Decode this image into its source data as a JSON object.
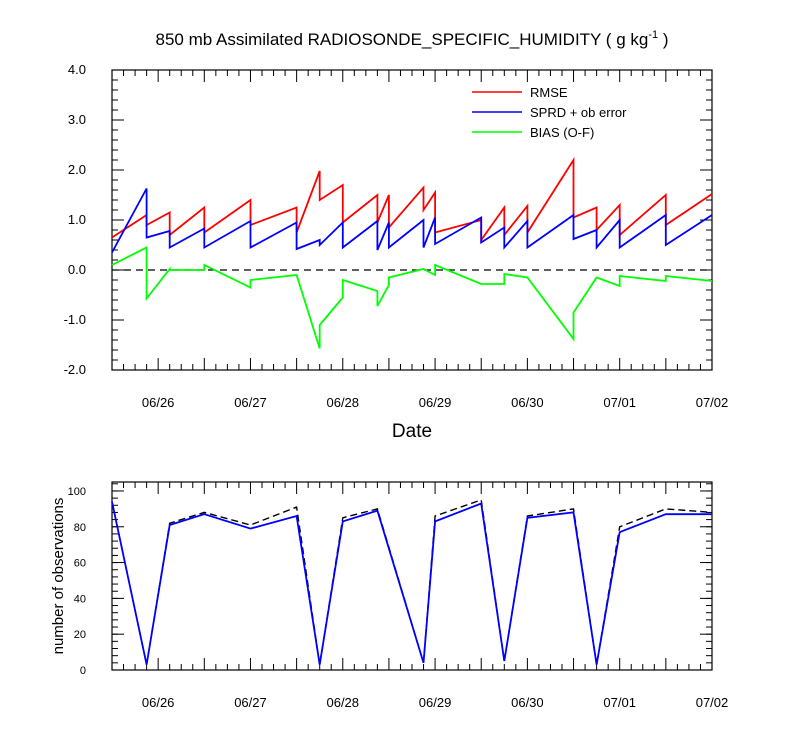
{
  "chart_data": [
    {
      "type": "line",
      "title": "850 mb Assimilated RADIOSONDE_SPECIFIC_HUMIDITY ( g kg",
      "title_sup": "-1",
      "title_end": " )",
      "xlabel": "Date",
      "ylabel": "",
      "x_tick_labels": [
        "06/26",
        "06/27",
        "06/28",
        "06/29",
        "06/30",
        "07/01",
        "07/02"
      ],
      "y_tick_labels": [
        "4.0",
        "3.0",
        "2.0",
        "1.0",
        "0.0",
        "-1.0",
        "-2.0"
      ],
      "ylim": [
        -2,
        4
      ],
      "zero_line": "dashed",
      "legend_position": "top-right",
      "series": [
        {
          "name": "RMSE",
          "color": "#ff0000",
          "x": [
            "06/25 12Z",
            "06/25 21Z",
            "06/25 21Z",
            "06/26 03Z",
            "06/26 03Z",
            "06/26 12Z",
            "06/26 12Z",
            "06/27 00Z",
            "06/27 00Z",
            "06/27 12Z",
            "06/27 12Z",
            "06/27 18Z",
            "06/27 18Z",
            "06/28 00Z",
            "06/28 00Z",
            "06/28 09Z",
            "06/28 09Z",
            "06/28 12Z",
            "06/28 12Z",
            "06/28 21Z",
            "06/28 21Z",
            "06/29 00Z",
            "06/29 00Z",
            "06/29 12Z",
            "06/29 12Z",
            "06/29 18Z",
            "06/29 18Z",
            "06/30 00Z",
            "06/30 00Z",
            "06/30 12Z",
            "06/30 12Z",
            "06/30 18Z",
            "06/30 18Z",
            "07/01 00Z",
            "07/01 00Z",
            "07/01 12Z",
            "07/01 12Z",
            "07/02 00Z"
          ],
          "values": [
            0.65,
            1.1,
            0.9,
            1.15,
            0.7,
            1.25,
            0.75,
            1.4,
            0.9,
            1.25,
            0.75,
            1.98,
            1.4,
            1.7,
            0.95,
            1.5,
            0.95,
            1.5,
            0.85,
            1.65,
            1.2,
            1.55,
            0.75,
            1.0,
            0.6,
            1.25,
            0.7,
            1.28,
            0.75,
            2.2,
            1.05,
            1.25,
            0.8,
            1.3,
            0.7,
            1.5,
            0.9,
            1.52
          ]
        },
        {
          "name": "SPRD + ob error",
          "color": "#0000ff",
          "x": [
            "06/25 12Z",
            "06/25 21Z",
            "06/25 21Z",
            "06/26 03Z",
            "06/26 03Z",
            "06/26 12Z",
            "06/26 12Z",
            "06/27 00Z",
            "06/27 00Z",
            "06/27 12Z",
            "06/27 12Z",
            "06/27 18Z",
            "06/27 18Z",
            "06/28 00Z",
            "06/28 00Z",
            "06/28 09Z",
            "06/28 09Z",
            "06/28 12Z",
            "06/28 12Z",
            "06/28 21Z",
            "06/28 21Z",
            "06/29 00Z",
            "06/29 00Z",
            "06/29 12Z",
            "06/29 12Z",
            "06/29 18Z",
            "06/29 18Z",
            "06/30 00Z",
            "06/30 00Z",
            "06/30 12Z",
            "06/30 12Z",
            "06/30 18Z",
            "06/30 18Z",
            "07/01 00Z",
            "07/01 00Z",
            "07/01 12Z",
            "07/01 12Z",
            "07/02 00Z"
          ],
          "values": [
            0.35,
            1.63,
            0.65,
            0.78,
            0.45,
            0.83,
            0.45,
            0.98,
            0.45,
            0.95,
            0.42,
            0.6,
            0.5,
            0.95,
            0.45,
            0.98,
            0.4,
            0.95,
            0.45,
            1.0,
            0.45,
            1.05,
            0.52,
            1.05,
            0.55,
            0.85,
            0.45,
            0.98,
            0.45,
            1.1,
            0.62,
            0.8,
            0.45,
            1.0,
            0.45,
            1.1,
            0.5,
            1.1
          ]
        },
        {
          "name": "BIAS (O-F)",
          "color": "#00ff00",
          "x": [
            "06/25 12Z",
            "06/25 21Z",
            "06/25 21Z",
            "06/26 03Z",
            "06/26 03Z",
            "06/26 12Z",
            "06/26 12Z",
            "06/27 00Z",
            "06/27 00Z",
            "06/27 12Z",
            "06/27 12Z",
            "06/27 18Z",
            "06/27 18Z",
            "06/28 00Z",
            "06/28 00Z",
            "06/28 09Z",
            "06/28 09Z",
            "06/28 12Z",
            "06/28 12Z",
            "06/28 21Z",
            "06/28 21Z",
            "06/29 00Z",
            "06/29 00Z",
            "06/29 12Z",
            "06/29 12Z",
            "06/29 18Z",
            "06/29 18Z",
            "06/30 00Z",
            "06/30 00Z",
            "06/30 12Z",
            "06/30 12Z",
            "06/30 18Z",
            "06/30 18Z",
            "07/01 00Z",
            "07/01 00Z",
            "07/01 12Z",
            "07/01 12Z",
            "07/02 00Z"
          ],
          "values": [
            0.1,
            0.45,
            -0.57,
            0.02,
            0.0,
            0.0,
            0.1,
            -0.35,
            -0.2,
            -0.1,
            -0.1,
            -1.57,
            -1.1,
            -0.55,
            -0.2,
            -0.42,
            -0.72,
            -0.3,
            -0.15,
            0.02,
            0.02,
            -0.1,
            0.1,
            -0.28,
            -0.28,
            -0.28,
            -0.08,
            -0.15,
            -0.15,
            -1.38,
            -0.85,
            -0.15,
            -0.15,
            -0.32,
            -0.12,
            -0.22,
            -0.12,
            -0.22
          ]
        }
      ]
    },
    {
      "type": "line",
      "title": "",
      "xlabel": "",
      "ylabel": "number of observations",
      "x_tick_labels": [
        "06/26",
        "06/27",
        "06/28",
        "06/29",
        "06/30",
        "07/01",
        "07/02"
      ],
      "y_tick_labels": [
        "100",
        "80",
        "60",
        "40",
        "20",
        "0"
      ],
      "ylim": [
        0,
        105
      ],
      "series": [
        {
          "name": "",
          "color": "#0000ff",
          "style": "solid",
          "x": [
            "06/25 12Z",
            "06/25 21Z",
            "06/26 03Z",
            "06/26 12Z",
            "06/27 00Z",
            "06/27 12Z",
            "06/27 18Z",
            "06/28 00Z",
            "06/28 09Z",
            "06/28 21Z",
            "06/29 00Z",
            "06/29 12Z",
            "06/29 18Z",
            "06/30 00Z",
            "06/30 12Z",
            "06/30 18Z",
            "07/01 00Z",
            "07/01 12Z",
            "07/02 00Z"
          ],
          "values": [
            94,
            3,
            81,
            87,
            79,
            86,
            3,
            83,
            89,
            4,
            83,
            93,
            5,
            85,
            88,
            3,
            77,
            87,
            87
          ]
        },
        {
          "name": "",
          "color": "#000000",
          "style": "dashed",
          "x": [
            "06/25 12Z",
            "06/25 21Z",
            "06/26 03Z",
            "06/26 12Z",
            "06/27 00Z",
            "06/27 12Z",
            "06/27 18Z",
            "06/28 00Z",
            "06/28 09Z",
            "06/28 21Z",
            "06/29 00Z",
            "06/29 12Z",
            "06/29 18Z",
            "06/30 00Z",
            "06/30 12Z",
            "06/30 18Z",
            "07/01 00Z",
            "07/01 12Z",
            "07/02 00Z"
          ],
          "values": [
            94,
            3,
            82,
            88,
            81,
            91,
            3,
            85,
            90,
            4,
            86,
            95,
            5,
            86,
            90,
            3,
            80,
            90,
            88
          ]
        }
      ]
    }
  ]
}
